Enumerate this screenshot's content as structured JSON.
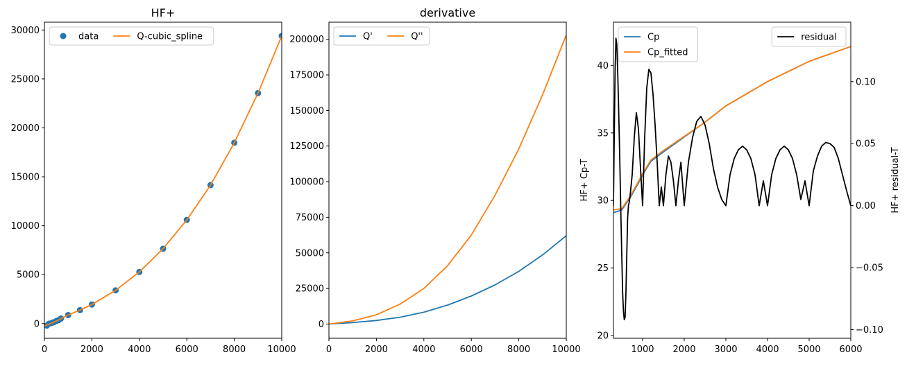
{
  "chart_data": [
    {
      "type": "line",
      "title": "HF+",
      "xlabel": "",
      "ylabel": "",
      "xlim": [
        0,
        10000
      ],
      "ylim": [
        -1500,
        30800
      ],
      "xticks": [
        "0",
        "2000",
        "4000",
        "6000",
        "8000",
        "10000"
      ],
      "yticks": [
        "0",
        "5000",
        "10000",
        "15000",
        "20000",
        "25000",
        "30000"
      ],
      "grid": false,
      "legend": "top-left",
      "series": [
        {
          "name": "data",
          "style": "scatter",
          "color": "#1f77b4",
          "x": [
            100,
            200,
            298.15,
            400,
            500,
            600,
            700,
            1000,
            1500,
            2000,
            3000,
            4000,
            5000,
            6000,
            7000,
            8000,
            9000,
            10000
          ],
          "y": [
            -200,
            0,
            50,
            150,
            260,
            360,
            520,
            870,
            1380,
            1950,
            3400,
            5280,
            7650,
            10600,
            14150,
            18480,
            23550,
            29400
          ]
        },
        {
          "name": "Q-cubic_spline",
          "style": "line",
          "color": "#ff7f0e",
          "x": [
            0,
            500,
            1000,
            1500,
            2000,
            3000,
            4000,
            5000,
            6000,
            7000,
            8000,
            9000,
            10000
          ],
          "y": [
            -250,
            260,
            870,
            1380,
            1950,
            3400,
            5280,
            7650,
            10600,
            14150,
            18480,
            23550,
            29400
          ]
        }
      ]
    },
    {
      "type": "line",
      "title": "derivative",
      "xlabel": "",
      "ylabel": "",
      "xlim": [
        0,
        10000
      ],
      "ylim": [
        -10000,
        212000
      ],
      "xticks": [
        "0",
        "2000",
        "4000",
        "6000",
        "8000",
        "10000"
      ],
      "yticks": [
        "0",
        "25000",
        "50000",
        "75000",
        "100000",
        "125000",
        "150000",
        "175000",
        "200000"
      ],
      "grid": false,
      "legend": "top-left",
      "series": [
        {
          "name": "Q'",
          "color": "#1f77b4",
          "x": [
            0,
            1000,
            2000,
            3000,
            4000,
            5000,
            6000,
            7000,
            8000,
            9000,
            10000
          ],
          "y": [
            0,
            1000,
            2500,
            4800,
            8300,
            13300,
            19700,
            27500,
            37000,
            48500,
            62000
          ]
        },
        {
          "name": "Q''",
          "color": "#ff7f0e",
          "x": [
            0,
            1000,
            2000,
            3000,
            4000,
            5000,
            6000,
            7000,
            8000,
            9000,
            10000
          ],
          "y": [
            0,
            2200,
            6500,
            14000,
            25000,
            41000,
            62500,
            90500,
            123000,
            161000,
            203000
          ]
        }
      ]
    },
    {
      "type": "line",
      "title": "",
      "xlabel": "",
      "ylabel": "HF+ Cp-T",
      "ylabel_right": "HF+ residual-T",
      "xlim": [
        300,
        6000
      ],
      "ylim": [
        19.8,
        43.2
      ],
      "ylim_right": [
        -0.107,
        0.148
      ],
      "xticks": [
        "1000",
        "2000",
        "3000",
        "4000",
        "5000",
        "6000"
      ],
      "yticks": [
        "20",
        "25",
        "30",
        "35",
        "40"
      ],
      "yticks_right": [
        "−0.10",
        "−0.05",
        "0.00",
        "0.05",
        "0.10"
      ],
      "grid": false,
      "legend": "top-left",
      "legend_right": "top-right",
      "series": [
        {
          "name": "Cp",
          "color": "#1f77b4",
          "axis": "left",
          "x": [
            300,
            500,
            700,
            900,
            1000,
            1200,
            1500,
            2000,
            2500,
            3000,
            3500,
            4000,
            4500,
            5000,
            5500,
            6000
          ],
          "y": [
            29.1,
            29.3,
            30.2,
            31.3,
            31.9,
            32.9,
            33.6,
            34.7,
            35.8,
            37.0,
            37.9,
            38.8,
            39.55,
            40.3,
            40.85,
            41.4
          ]
        },
        {
          "name": "Cp_fitted",
          "color": "#ff7f0e",
          "axis": "left",
          "x": [
            300,
            500,
            700,
            900,
            1000,
            1200,
            1500,
            2000,
            2500,
            3000,
            3500,
            4000,
            4500,
            5000,
            5500,
            6000
          ],
          "y": [
            29.3,
            29.4,
            30.3,
            31.4,
            32.0,
            33.0,
            33.7,
            34.75,
            35.8,
            37.0,
            37.9,
            38.8,
            39.55,
            40.3,
            40.85,
            41.4
          ]
        },
        {
          "name": "residual",
          "color": "#000000",
          "axis": "right",
          "x": [
            300,
            320,
            340,
            360,
            380,
            400,
            420,
            450,
            480,
            500,
            520,
            540,
            560,
            580,
            600,
            620,
            640,
            660,
            680,
            700,
            750,
            800,
            850,
            900,
            950,
            1000,
            1050,
            1100,
            1150,
            1200,
            1250,
            1300,
            1350,
            1400,
            1450,
            1500,
            1560,
            1620,
            1680,
            1740,
            1800,
            1860,
            1920,
            2000,
            2100,
            2200,
            2300,
            2400,
            2500,
            2600,
            2700,
            2800,
            2900,
            3000,
            3100,
            3200,
            3300,
            3400,
            3500,
            3600,
            3700,
            3800,
            3900,
            4000,
            4100,
            4200,
            4300,
            4400,
            4500,
            4600,
            4700,
            4800,
            4900,
            5000,
            5100,
            5200,
            5300,
            5400,
            5500,
            5600,
            5700,
            5800,
            5900,
            6000
          ],
          "y": [
            0.0,
            0.06,
            0.11,
            0.135,
            0.13,
            0.11,
            0.085,
            0.04,
            -0.01,
            -0.04,
            -0.07,
            -0.085,
            -0.092,
            -0.09,
            -0.07,
            -0.04,
            -0.01,
            0.0,
            0.003,
            0.008,
            0.025,
            0.055,
            0.075,
            0.062,
            0.03,
            0.0,
            0.055,
            0.095,
            0.11,
            0.107,
            0.09,
            0.065,
            0.035,
            0.0,
            0.015,
            0.0,
            0.025,
            0.04,
            0.035,
            0.02,
            0.0,
            0.02,
            0.035,
            0.0,
            0.035,
            0.055,
            0.068,
            0.072,
            0.065,
            0.05,
            0.03,
            0.015,
            0.005,
            0.0,
            0.025,
            0.038,
            0.045,
            0.048,
            0.045,
            0.038,
            0.025,
            0.0,
            0.02,
            0.0,
            0.025,
            0.038,
            0.045,
            0.048,
            0.045,
            0.038,
            0.025,
            0.005,
            0.02,
            0.0,
            0.028,
            0.04,
            0.048,
            0.051,
            0.05,
            0.047,
            0.038,
            0.025,
            0.012,
            0.0
          ]
        }
      ]
    }
  ]
}
